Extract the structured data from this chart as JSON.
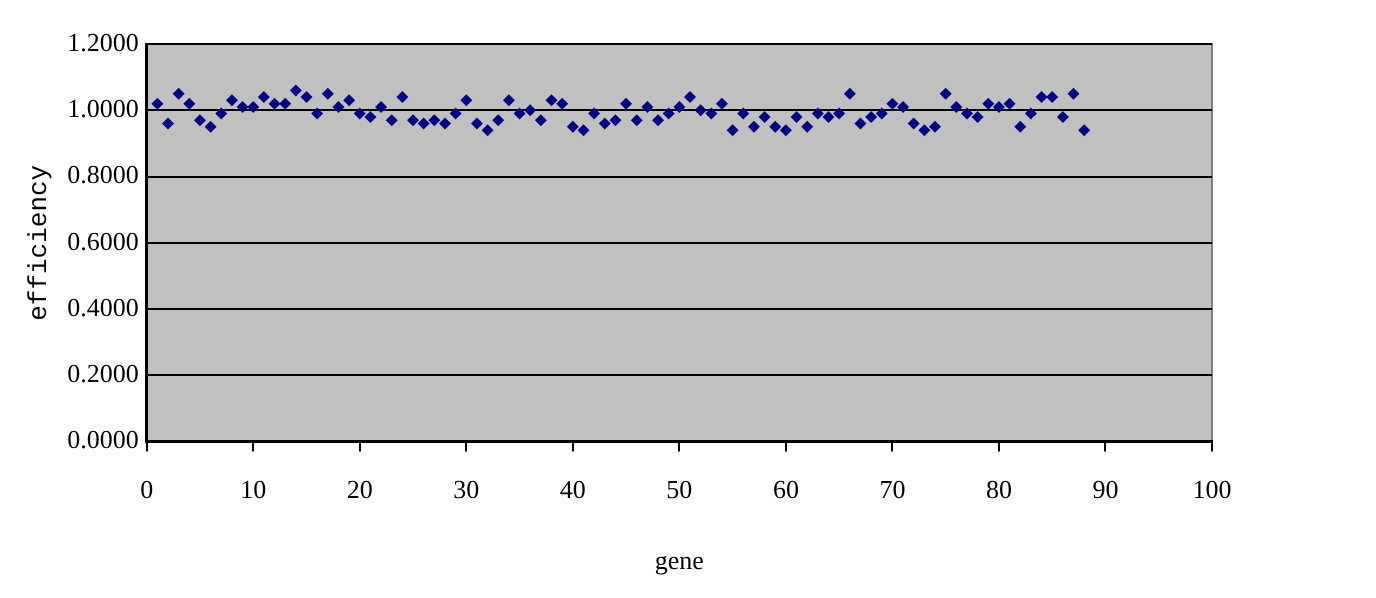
{
  "chart_data": {
    "type": "scatter",
    "xlabel": "gene",
    "ylabel": "efficiency",
    "x": [
      1,
      2,
      3,
      4,
      5,
      6,
      7,
      8,
      9,
      10,
      11,
      12,
      13,
      14,
      15,
      16,
      17,
      18,
      19,
      20,
      21,
      22,
      23,
      24,
      25,
      26,
      27,
      28,
      29,
      30,
      31,
      32,
      33,
      34,
      35,
      36,
      37,
      38,
      39,
      40,
      41,
      42,
      43,
      44,
      45,
      46,
      47,
      48,
      49,
      50,
      51,
      52,
      53,
      54,
      55,
      56,
      57,
      58,
      59,
      60,
      61,
      62,
      63,
      64,
      65,
      66,
      67,
      68,
      69,
      70,
      71,
      72,
      73,
      74,
      75,
      76,
      77,
      78,
      79,
      80,
      81,
      82,
      83,
      84,
      85,
      86,
      87,
      88
    ],
    "series": [
      {
        "color": "#000080",
        "values": [
          1.02,
          0.96,
          1.05,
          1.02,
          0.97,
          0.95,
          0.99,
          1.03,
          1.01,
          1.01,
          1.04,
          1.02,
          1.02,
          1.06,
          1.04,
          0.99,
          1.05,
          1.01,
          1.03,
          0.99,
          0.98,
          1.01,
          0.97,
          1.04,
          0.97,
          0.96,
          0.97,
          0.96,
          0.99,
          1.03,
          0.96,
          0.94,
          0.97,
          1.03,
          0.99,
          1.0,
          0.97,
          1.03,
          1.02,
          0.95,
          0.94,
          0.99,
          0.96,
          0.97,
          1.02,
          0.97,
          1.01,
          0.97,
          0.99,
          1.01,
          1.04,
          1.0,
          0.99,
          1.02,
          0.94,
          0.99,
          0.95,
          0.98,
          0.95,
          0.94,
          0.98,
          0.95,
          0.99,
          0.98,
          0.99,
          1.05,
          0.96,
          0.98,
          0.99,
          1.02,
          1.01,
          0.96,
          0.94,
          0.95,
          1.05,
          1.01,
          0.99,
          0.98,
          1.02,
          1.01,
          1.02,
          0.95,
          0.99,
          1.04,
          1.04,
          0.98,
          1.05,
          0.94
        ]
      }
    ],
    "xlim": [
      0,
      100
    ],
    "xticks": [
      0,
      10,
      20,
      30,
      40,
      50,
      60,
      70,
      80,
      90,
      100
    ],
    "ylim": [
      0,
      1.2
    ],
    "yticks": [
      {
        "value": 0,
        "label": "0.0000"
      },
      {
        "value": 0.2,
        "label": "0.2000"
      },
      {
        "value": 0.4,
        "label": "0.4000"
      },
      {
        "value": 0.6,
        "label": "0.6000"
      },
      {
        "value": 0.8,
        "label": "0.8000"
      },
      {
        "value": 1,
        "label": "1.0000"
      },
      {
        "value": 1.2,
        "label": "1.2000"
      }
    ],
    "grid": "y",
    "legend": false,
    "marker": "diamond"
  }
}
